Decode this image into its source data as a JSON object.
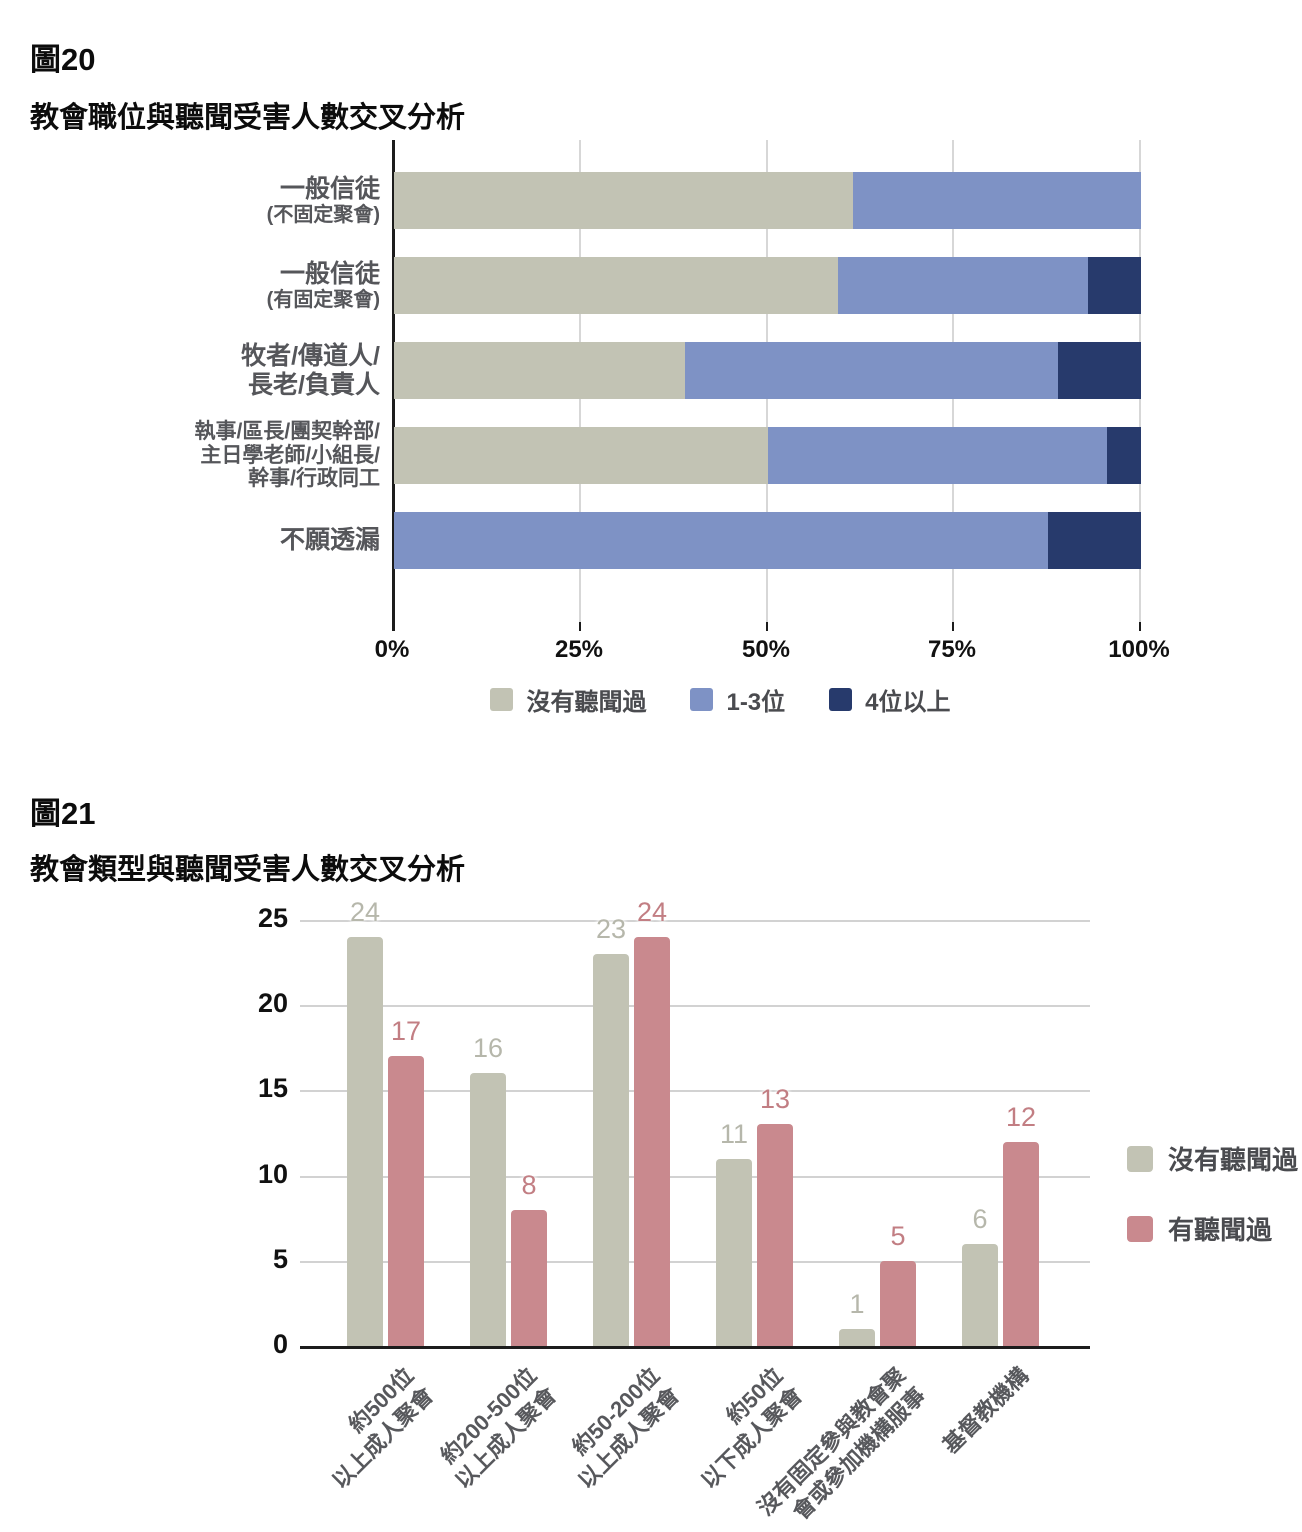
{
  "figure20": {
    "label": "圖20",
    "title": "教會職位與聽聞受害人數交叉分析"
  },
  "figure21": {
    "label": "圖21",
    "title": "教會類型與聽聞受害人數交叉分析"
  },
  "colors": {
    "no_heard_gray": "#c2c3b4",
    "one_to_three_blue": "#7e92c5",
    "four_plus_navy": "#273a6c",
    "heard_rose": "#c9898e",
    "grid": "#d7d7d7",
    "axis": "#1c1c1c",
    "category_text": "#55565a",
    "gray_data_label": "#b6b7ab",
    "rose_data_label": "#c27e83"
  },
  "chart_data": [
    {
      "figure": "圖20",
      "type": "bar",
      "variant": "horizontal_stacked_percent",
      "title": "教會職位與聽聞受害人數交叉分析",
      "categories": [
        {
          "lines": [
            "一般信徒"
          ],
          "small_lines": [
            "(不固定聚會)"
          ]
        },
        {
          "lines": [
            "一般信徒"
          ],
          "small_lines": [
            "(有固定聚會)"
          ]
        },
        {
          "lines": [
            "牧者/傳道人/",
            "長老/負責人"
          ],
          "small_lines": []
        },
        {
          "lines": [
            "執事/區長/團契幹部/",
            "主日學老師/小組長/",
            "幹事/行政同工"
          ],
          "small_lines": []
        },
        {
          "lines": [
            "不願透漏"
          ],
          "small_lines": []
        }
      ],
      "series": [
        {
          "name": "沒有聽聞過",
          "color": "#c2c3b4",
          "values_pct": [
            61.5,
            59.5,
            38.9,
            50.0,
            0.0
          ]
        },
        {
          "name": "1-3位",
          "color": "#7e92c5",
          "values_pct": [
            38.5,
            33.4,
            50.0,
            45.5,
            87.5
          ]
        },
        {
          "name": "4位以上",
          "color": "#273a6c",
          "values_pct": [
            0.0,
            7.1,
            11.1,
            4.5,
            12.5
          ]
        }
      ],
      "x_ticks": [
        "0%",
        "25%",
        "50%",
        "75%",
        "100%"
      ],
      "xlim": [
        0,
        100
      ],
      "grid": true,
      "legend_position": "bottom"
    },
    {
      "figure": "圖21",
      "type": "bar",
      "variant": "vertical_grouped",
      "title": "教會類型與聽聞受害人數交叉分析",
      "categories": [
        {
          "lines": [
            "約500位",
            "以上成人聚會"
          ]
        },
        {
          "lines": [
            "約200-500位",
            "以上成人聚會"
          ]
        },
        {
          "lines": [
            "約50-200位",
            "以上成人聚會"
          ]
        },
        {
          "lines": [
            "約50位",
            "以下成人聚會"
          ]
        },
        {
          "lines": [
            "沒有固定參與教會聚",
            "會或參加機構服事"
          ]
        },
        {
          "lines": [
            "基督教機構"
          ]
        }
      ],
      "series": [
        {
          "name": "沒有聽聞過",
          "color": "#c2c3b4",
          "label_color": "#b6b7ab",
          "values": [
            24,
            16,
            23,
            11,
            1,
            6
          ]
        },
        {
          "name": "有聽聞過",
          "color": "#c9898e",
          "label_color": "#c27e83",
          "values": [
            17,
            8,
            24,
            13,
            5,
            12
          ]
        }
      ],
      "y_ticks": [
        0,
        5,
        10,
        15,
        20,
        25
      ],
      "ylim": [
        0,
        25
      ],
      "grid": true,
      "legend_position": "right",
      "data_labels": true
    }
  ]
}
